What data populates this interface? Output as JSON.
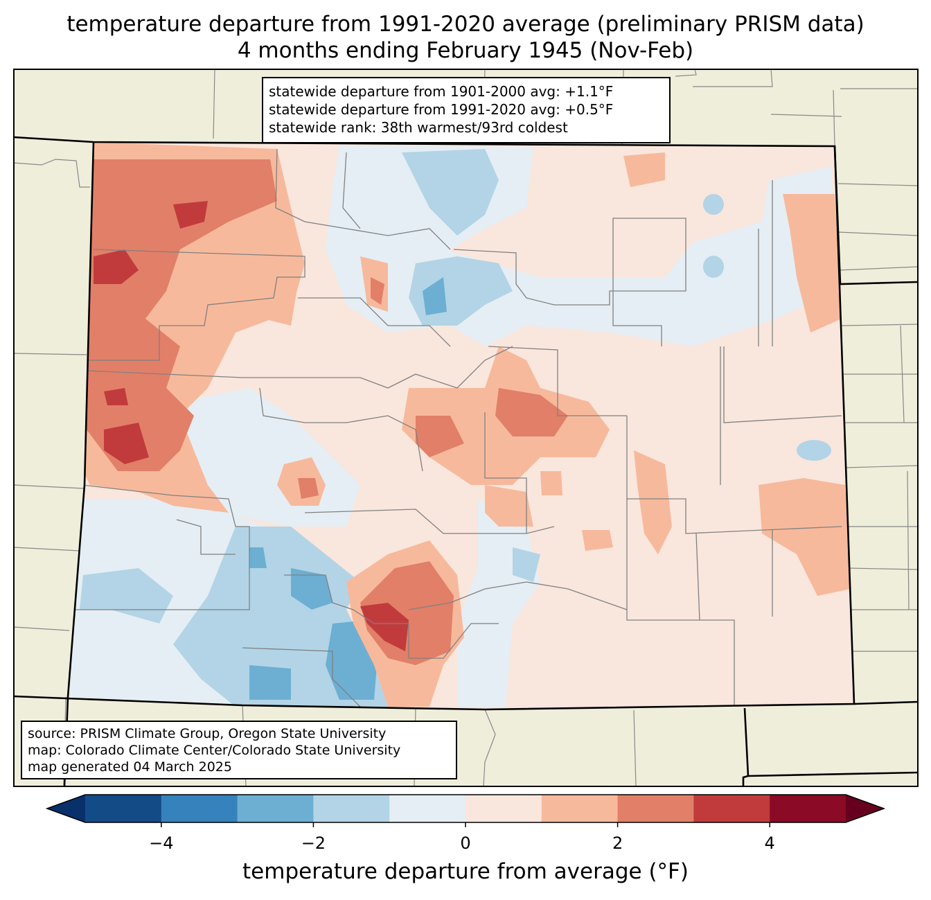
{
  "title": {
    "line1": "temperature departure from 1991-2020 average (preliminary PRISM data)",
    "line2": "4 months ending February 1945 (Nov-Feb)"
  },
  "stats_box": [
    "statewide departure from 1901-2000 avg: +1.1°F",
    "statewide departure from 1991-2020 avg: +0.5°F",
    "statewide rank: 38th warmest/93rd coldest"
  ],
  "credits_box": [
    "source: PRISM Climate Group, Oregon State University",
    "map: Colorado Climate Center/Colorado State University",
    "map generated 04 March 2025"
  ],
  "colorbar": {
    "label": "temperature departure from average (°F)",
    "min": -5,
    "max": 5,
    "ticks": [
      "−4",
      "−2",
      "0",
      "2",
      "4"
    ],
    "tick_values": [
      -4,
      -2,
      0,
      2,
      4
    ],
    "colors": [
      "#134b87",
      "#3582bd",
      "#6cafd3",
      "#b2d4e6",
      "#e5eef4",
      "#f9e6dd",
      "#f7b99c",
      "#e27f68",
      "#c13b3c",
      "#8b0a26"
    ],
    "under_color": "#08306b",
    "over_color": "#67001f"
  },
  "map_colors": {
    "land": "#efeedb",
    "state_border": "#000000",
    "county_lines": "#808080"
  }
}
